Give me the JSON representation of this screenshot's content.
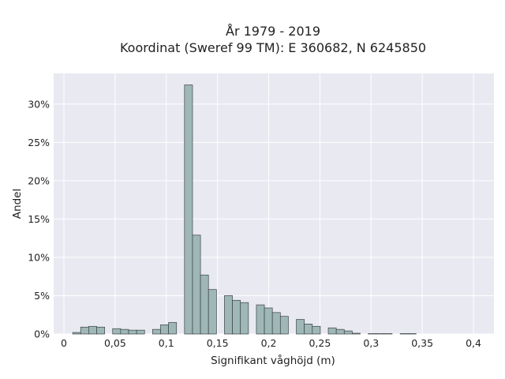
{
  "chart_data": {
    "type": "bar",
    "title_lines": [
      "År 1979 - 2019",
      "Koordinat (Sweref 99 TM): E 360682, N 6245850"
    ],
    "xlabel": "Signifikant våghöjd (m)",
    "ylabel": "Andel",
    "xlim": [
      -0.01,
      0.42
    ],
    "ylim": [
      0,
      34
    ],
    "x_ticks": [
      0,
      0.05,
      0.1,
      0.15,
      0.2,
      0.25,
      0.3,
      0.35,
      0.4
    ],
    "x_tick_labels": [
      "0",
      "0,05",
      "0,1",
      "0,15",
      "0,2",
      "0,25",
      "0,3",
      "0,35",
      "0,4"
    ],
    "y_ticks": [
      0,
      5,
      10,
      15,
      20,
      25,
      30
    ],
    "y_tick_labels": [
      "0%",
      "5%",
      "10%",
      "15%",
      "20%",
      "25%",
      "30%"
    ],
    "bin_width": 0.0078,
    "grid": true,
    "colors": {
      "plot_bg": "#e9e9f1",
      "grid": "#ffffff",
      "bar_fill": "#9fb7b7",
      "bar_stroke": "#3a4444"
    },
    "bins": [
      {
        "x": 0.0125,
        "y": 0.2
      },
      {
        "x": 0.0203,
        "y": 0.9
      },
      {
        "x": 0.0281,
        "y": 1.0
      },
      {
        "x": 0.0359,
        "y": 0.9
      },
      {
        "x": 0.0515,
        "y": 0.7
      },
      {
        "x": 0.0593,
        "y": 0.6
      },
      {
        "x": 0.0671,
        "y": 0.5
      },
      {
        "x": 0.0749,
        "y": 0.5
      },
      {
        "x": 0.0905,
        "y": 0.6
      },
      {
        "x": 0.0983,
        "y": 1.2
      },
      {
        "x": 0.1061,
        "y": 1.5
      },
      {
        "x": 0.1217,
        "y": 32.5
      },
      {
        "x": 0.1295,
        "y": 12.9
      },
      {
        "x": 0.1373,
        "y": 7.7
      },
      {
        "x": 0.1451,
        "y": 5.8
      },
      {
        "x": 0.1607,
        "y": 5.0
      },
      {
        "x": 0.1685,
        "y": 4.4
      },
      {
        "x": 0.1763,
        "y": 4.1
      },
      {
        "x": 0.1919,
        "y": 3.8
      },
      {
        "x": 0.1997,
        "y": 3.4
      },
      {
        "x": 0.2075,
        "y": 2.8
      },
      {
        "x": 0.2153,
        "y": 2.3
      },
      {
        "x": 0.2309,
        "y": 1.9
      },
      {
        "x": 0.2387,
        "y": 1.3
      },
      {
        "x": 0.2465,
        "y": 1.0
      },
      {
        "x": 0.2621,
        "y": 0.8
      },
      {
        "x": 0.2699,
        "y": 0.6
      },
      {
        "x": 0.2777,
        "y": 0.4
      },
      {
        "x": 0.2855,
        "y": 0.1
      },
      {
        "x": 0.3011,
        "y": 0.05
      },
      {
        "x": 0.3089,
        "y": 0.05
      },
      {
        "x": 0.3167,
        "y": 0.05
      },
      {
        "x": 0.3323,
        "y": 0.05
      },
      {
        "x": 0.3401,
        "y": 0.05
      }
    ]
  }
}
